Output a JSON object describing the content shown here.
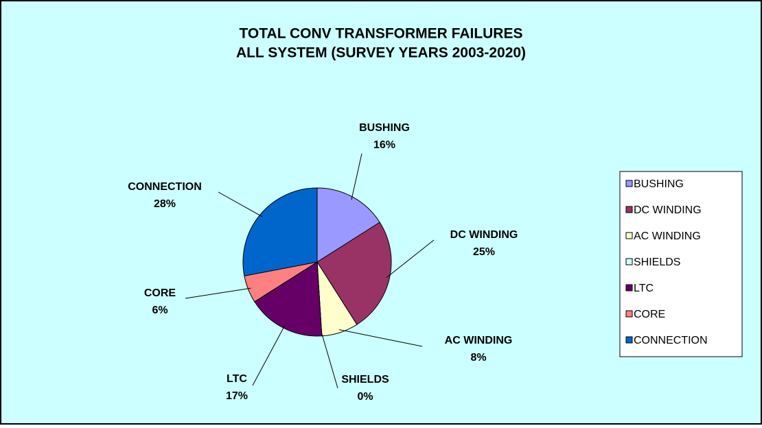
{
  "chart_data": {
    "type": "pie",
    "title": [
      "TOTAL CONV TRANSFORMER FAILURES",
      "ALL SYSTEM (SURVEY YEARS 2003-2020)"
    ],
    "categories": [
      "BUSHING",
      "DC WINDING",
      "AC WINDING",
      "SHIELDS",
      "LTC",
      "CORE",
      "CONNECTION"
    ],
    "values": [
      16,
      25,
      8,
      0,
      17,
      6,
      28
    ],
    "value_labels": [
      "16%",
      "25%",
      "8%",
      "0%",
      "17%",
      "6%",
      "28%"
    ],
    "colors": [
      "#9999ff",
      "#993366",
      "#ffffcc",
      "#ccffff",
      "#660066",
      "#ff8080",
      "#0066cc"
    ],
    "legend": "right"
  }
}
